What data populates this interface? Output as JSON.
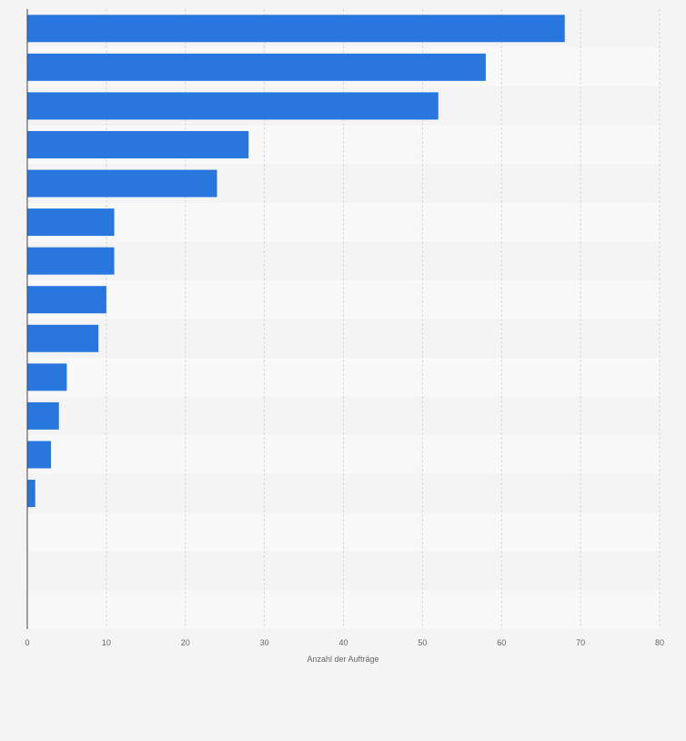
{
  "chart_data": {
    "type": "bar",
    "orientation": "horizontal",
    "title": "",
    "xlabel": "Anzahl der Aufträge",
    "ylabel": "",
    "xlim": [
      0,
      80
    ],
    "x_ticks": [
      0,
      10,
      20,
      30,
      40,
      50,
      60,
      70,
      80
    ],
    "grid": true,
    "legend": "none",
    "bar_color": "#2777de",
    "categories": [
      "",
      "",
      "",
      "",
      "",
      "",
      "",
      "",
      "",
      "",
      "",
      "",
      "",
      "",
      "",
      ""
    ],
    "values": [
      68,
      58,
      52,
      28,
      24,
      11,
      11,
      10,
      9,
      5,
      4,
      3,
      1,
      0,
      0,
      0
    ]
  }
}
